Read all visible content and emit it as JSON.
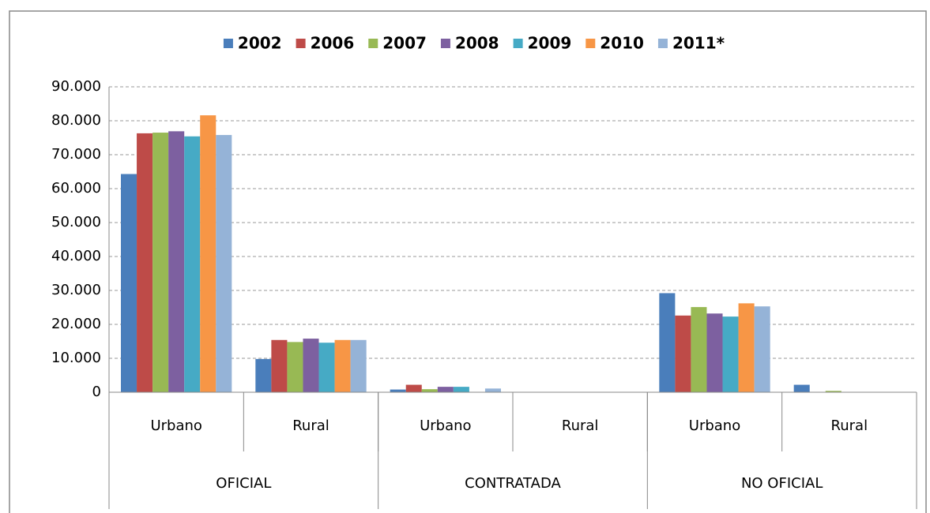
{
  "chart_data": {
    "type": "bar",
    "categories": [
      "Urbano",
      "Rural",
      "Urbano",
      "Rural",
      "Urbano",
      "Rural"
    ],
    "groups": [
      "OFICIAL",
      "CONTRATADA",
      "NO OFICIAL"
    ],
    "series": [
      {
        "name": "2002",
        "color": "#4a7ebb",
        "values": [
          64300,
          9800,
          800,
          0,
          29200,
          2200
        ]
      },
      {
        "name": "2006",
        "color": "#be4b48",
        "values": [
          76300,
          15400,
          2200,
          0,
          22600,
          0
        ]
      },
      {
        "name": "2007",
        "color": "#98b954",
        "values": [
          76500,
          14800,
          900,
          0,
          25100,
          400
        ]
      },
      {
        "name": "2008",
        "color": "#7d60a0",
        "values": [
          76900,
          15800,
          1600,
          0,
          23200,
          0
        ]
      },
      {
        "name": "2009",
        "color": "#46aac5",
        "values": [
          75400,
          14600,
          1600,
          0,
          22300,
          0
        ]
      },
      {
        "name": "2010",
        "color": "#f79646",
        "values": [
          81600,
          15400,
          0,
          0,
          26200,
          0
        ]
      },
      {
        "name": "2011*",
        "color": "#95b3d7",
        "values": [
          75800,
          15400,
          1100,
          0,
          25300,
          0
        ]
      }
    ],
    "ylim": [
      0,
      90000
    ],
    "yticks": [
      0,
      {
        "value": 10000,
        "label": "10.000"
      },
      {
        "value": 20000,
        "label": "20.000"
      },
      {
        "value": 30000,
        "label": "30.000"
      },
      {
        "value": 40000,
        "label": "40.000"
      },
      {
        "value": 50000,
        "label": "50.000"
      },
      {
        "value": 60000,
        "label": "60.000"
      },
      {
        "value": 70000,
        "label": "70.000"
      },
      {
        "value": 80000,
        "label": "80.000"
      },
      {
        "value": 90000,
        "label": "90.000"
      }
    ],
    "grid": true,
    "legend": "top"
  }
}
